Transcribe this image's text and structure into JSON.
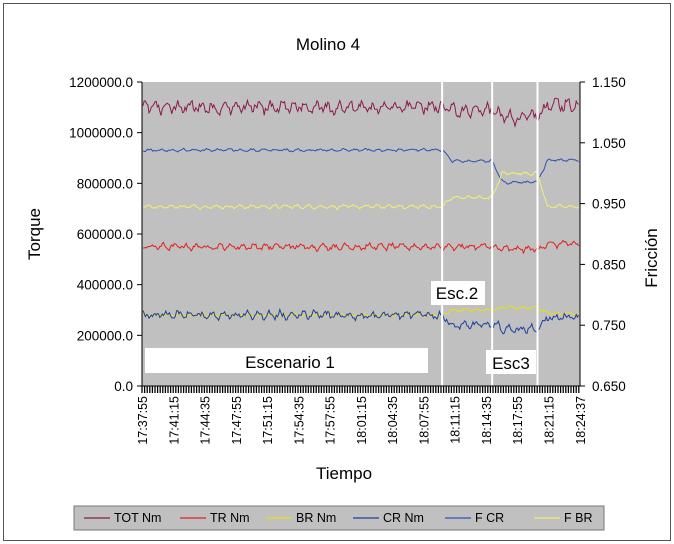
{
  "chart_data": {
    "type": "line",
    "title": "Molino 4",
    "xlabel": "Tiempo",
    "ylabel": "Torque",
    "y2label": "Fricción",
    "ylim": [
      0,
      1200000
    ],
    "y2lim": [
      0.65,
      1.15
    ],
    "yticks": [
      "0.0",
      "200000.0",
      "400000.0",
      "600000.0",
      "800000.0",
      "1000000.0",
      "1200000.0"
    ],
    "y2ticks": [
      "0.650",
      "0.750",
      "0.850",
      "0.950",
      "1.050",
      "1.150"
    ],
    "x_categories": [
      "17:37:55",
      "17:41:15",
      "17:44:35",
      "17:47:55",
      "17:51:15",
      "17:54:35",
      "17:57:55",
      "18:01:15",
      "18:04:35",
      "18:07:55",
      "18:11:15",
      "18:14:35",
      "18:17:55",
      "18:21:15",
      "18:24:37"
    ],
    "scenario_boundaries": [
      "18:09:55",
      "18:15:15",
      "18:20:05"
    ],
    "annotations": [
      "Escenario 1",
      "Esc.2",
      "Esc3"
    ],
    "series": [
      {
        "name": "TOT Nm",
        "axis": "left",
        "color": "#8b1a4a",
        "segment_levels": [
          1100000,
          1090000,
          1060000,
          1110000
        ],
        "noise": 35000
      },
      {
        "name": "TR Nm",
        "axis": "left",
        "color": "#e02020",
        "segment_levels": [
          550000,
          550000,
          540000,
          560000
        ],
        "noise": 17000
      },
      {
        "name": "BR Nm",
        "axis": "left",
        "color": "#e8e010",
        "segment_levels": [
          280000,
          300000,
          310000,
          285000
        ],
        "noise": 8000
      },
      {
        "name": "CR Nm",
        "axis": "left",
        "color": "#1f3f9f",
        "segment_levels": [
          280000,
          240000,
          225000,
          270000
        ],
        "noise": 22000
      },
      {
        "name": "F CR",
        "axis": "right",
        "color": "#3050b0",
        "segment_levels": [
          1.038,
          1.02,
          0.985,
          1.022
        ],
        "noise": 0.003
      },
      {
        "name": "F BR",
        "axis": "right",
        "color": "#f0f070",
        "segment_levels": [
          0.945,
          0.96,
          1.0,
          0.945
        ],
        "noise": 0.004
      }
    ],
    "legend": [
      "TOT Nm",
      "TR Nm",
      "BR Nm",
      "CR Nm",
      "F CR",
      "F BR"
    ],
    "legend_position": "bottom"
  },
  "colors": {
    "plot_background": "#c0c0c0",
    "scenario_line": "#ffffff"
  }
}
